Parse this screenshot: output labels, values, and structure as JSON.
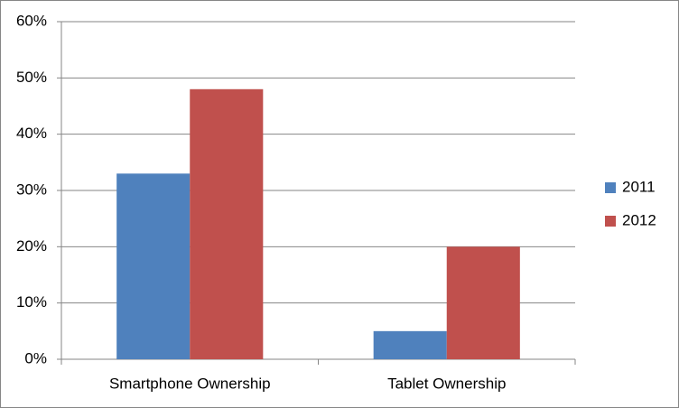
{
  "chart_data": {
    "type": "bar",
    "categories": [
      "Smartphone Ownership",
      "Tablet Ownership"
    ],
    "series": [
      {
        "name": "2011",
        "color": "#4f81bd",
        "values": [
          33,
          5
        ]
      },
      {
        "name": "2012",
        "color": "#c0504d",
        "values": [
          48,
          20
        ]
      }
    ],
    "ylim": [
      0,
      60
    ],
    "yticks": [
      {
        "value": 0,
        "label": "0%"
      },
      {
        "value": 10,
        "label": "10%"
      },
      {
        "value": 20,
        "label": "20%"
      },
      {
        "value": 30,
        "label": "30%"
      },
      {
        "value": 40,
        "label": "40%"
      },
      {
        "value": 50,
        "label": "50%"
      },
      {
        "value": 60,
        "label": "60%"
      }
    ],
    "grid": true,
    "legend": "right"
  }
}
